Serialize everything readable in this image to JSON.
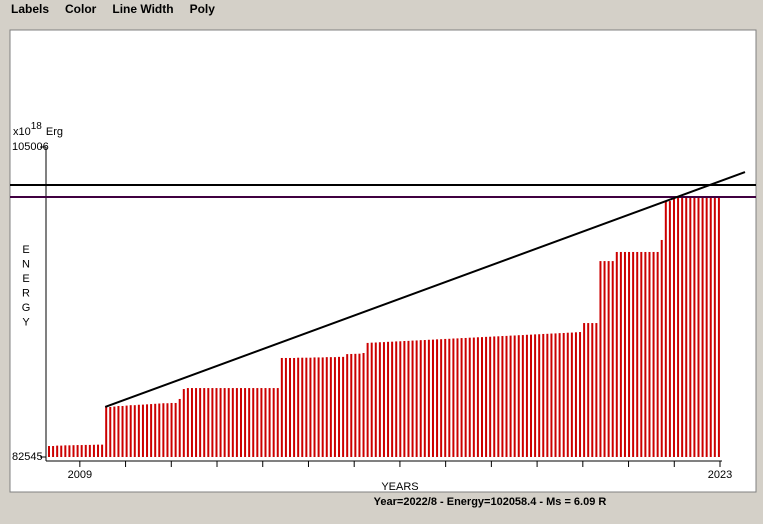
{
  "menu": [
    "Labels",
    "Color",
    "Line Width",
    "Poly"
  ],
  "status": "Year=2022/8 - Energy=102058.4 - Ms = 6.09 R",
  "chart_data": {
    "type": "bar",
    "yunit": {
      "base": "x10",
      "exp": "18",
      "unit": "Erg"
    },
    "ylabel": "ENERGY",
    "xlabel": "YEARS",
    "color": "#cc0000",
    "ylim": [
      82545,
      105006
    ],
    "yticks": [
      105006,
      82545
    ],
    "xlim": [
      2008.26,
      2023
    ],
    "xticks": [
      2009,
      2023
    ],
    "hlines": [
      {
        "value": 102251,
        "color": "#000000"
      },
      {
        "value": 101382,
        "color": "#400040"
      }
    ],
    "trend": [
      86168,
      103193
    ],
    "values": [
      83340,
      83340,
      83370,
      83370,
      83390,
      83390,
      83400,
      83410,
      83410,
      83420,
      83420,
      83430,
      83440,
      83440,
      86170,
      86170,
      86200,
      86240,
      86240,
      86270,
      86300,
      86300,
      86330,
      86340,
      86360,
      86380,
      86400,
      86420,
      86440,
      86440,
      86460,
      86460,
      86750,
      87470,
      87540,
      87540,
      87540,
      87540,
      87540,
      87540,
      87540,
      87540,
      87540,
      87540,
      87540,
      87540,
      87540,
      87540,
      87540,
      87540,
      87540,
      87540,
      87540,
      87540,
      87540,
      87540,
      87540,
      89720,
      89720,
      89720,
      89720,
      89740,
      89740,
      89740,
      89740,
      89760,
      89760,
      89760,
      89780,
      89780,
      89780,
      89800,
      89800,
      90000,
      90010,
      90020,
      90030,
      90080,
      90810,
      90830,
      90840,
      90860,
      90870,
      90890,
      90900,
      90920,
      90930,
      90950,
      90960,
      90980,
      90990,
      91010,
      91020,
      91040,
      91050,
      91070,
      91080,
      91100,
      91110,
      91130,
      91140,
      91160,
      91170,
      91190,
      91200,
      91220,
      91230,
      91250,
      91260,
      91280,
      91290,
      91310,
      91320,
      91340,
      91350,
      91370,
      91380,
      91400,
      91410,
      91430,
      91440,
      91460,
      91470,
      91490,
      91500,
      91520,
      91530,
      91550,
      91560,
      91580,
      91600,
      92250,
      92250,
      92250,
      92250,
      96740,
      96740,
      96740,
      96740,
      97400,
      97400,
      97400,
      97400,
      97400,
      97400,
      97400,
      97400,
      97400,
      97400,
      97400,
      98270,
      101090,
      101090,
      101380,
      101380,
      101380,
      101380,
      101380,
      101380,
      101380,
      101380,
      101380,
      101380,
      101380,
      101380
    ]
  }
}
